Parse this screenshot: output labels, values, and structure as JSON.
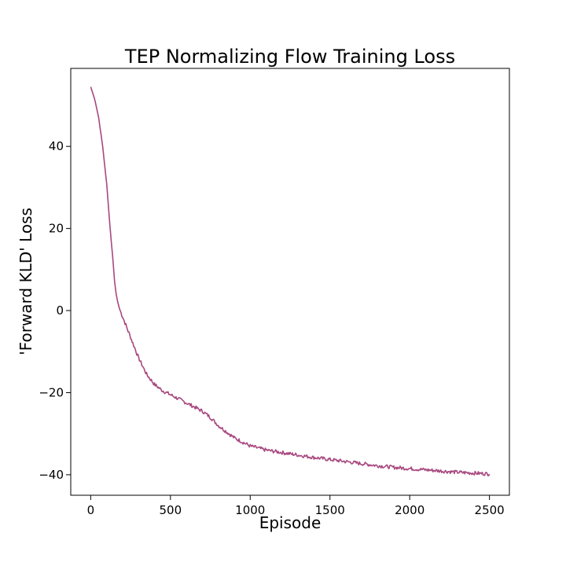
{
  "chart_data": {
    "type": "line",
    "title": "TEP Normalizing Flow Training Loss",
    "xlabel": "Episode",
    "ylabel": "'Forward KLD' Loss",
    "xlim": [
      -125,
      2625
    ],
    "ylim": [
      -45,
      59
    ],
    "xticks": [
      0,
      500,
      1000,
      1500,
      2000,
      2500
    ],
    "yticks": [
      -40,
      -20,
      0,
      20,
      40
    ],
    "xtick_labels": [
      "0",
      "500",
      "1000",
      "1500",
      "2000",
      "2500"
    ],
    "ytick_labels": [
      "−40",
      "−20",
      "0",
      "20",
      "40"
    ],
    "grid": false,
    "series": [
      {
        "color": "#a8487f",
        "x": [
          0,
          25,
          50,
          75,
          100,
          120,
          140,
          150,
          160,
          170,
          180,
          200,
          250,
          300,
          350,
          400,
          450,
          500,
          550,
          600,
          650,
          700,
          750,
          800,
          850,
          900,
          950,
          1000,
          1100,
          1200,
          1300,
          1400,
          1500,
          1600,
          1700,
          1800,
          1900,
          2000,
          2100,
          2200,
          2300,
          2400,
          2500
        ],
        "y": [
          54.5,
          51.5,
          47,
          40,
          31,
          21,
          12,
          7,
          4,
          2,
          0.5,
          -1.5,
          -6.5,
          -11.5,
          -15.5,
          -18,
          -19.5,
          -20.5,
          -21.5,
          -22.5,
          -23.5,
          -24.5,
          -26,
          -28,
          -29.5,
          -31,
          -32,
          -33,
          -34,
          -34.6,
          -35.2,
          -35.8,
          -36.3,
          -36.8,
          -37.3,
          -37.8,
          -38.2,
          -38.5,
          -38.8,
          -39.1,
          -39.4,
          -39.6,
          -39.8
        ]
      }
    ]
  }
}
